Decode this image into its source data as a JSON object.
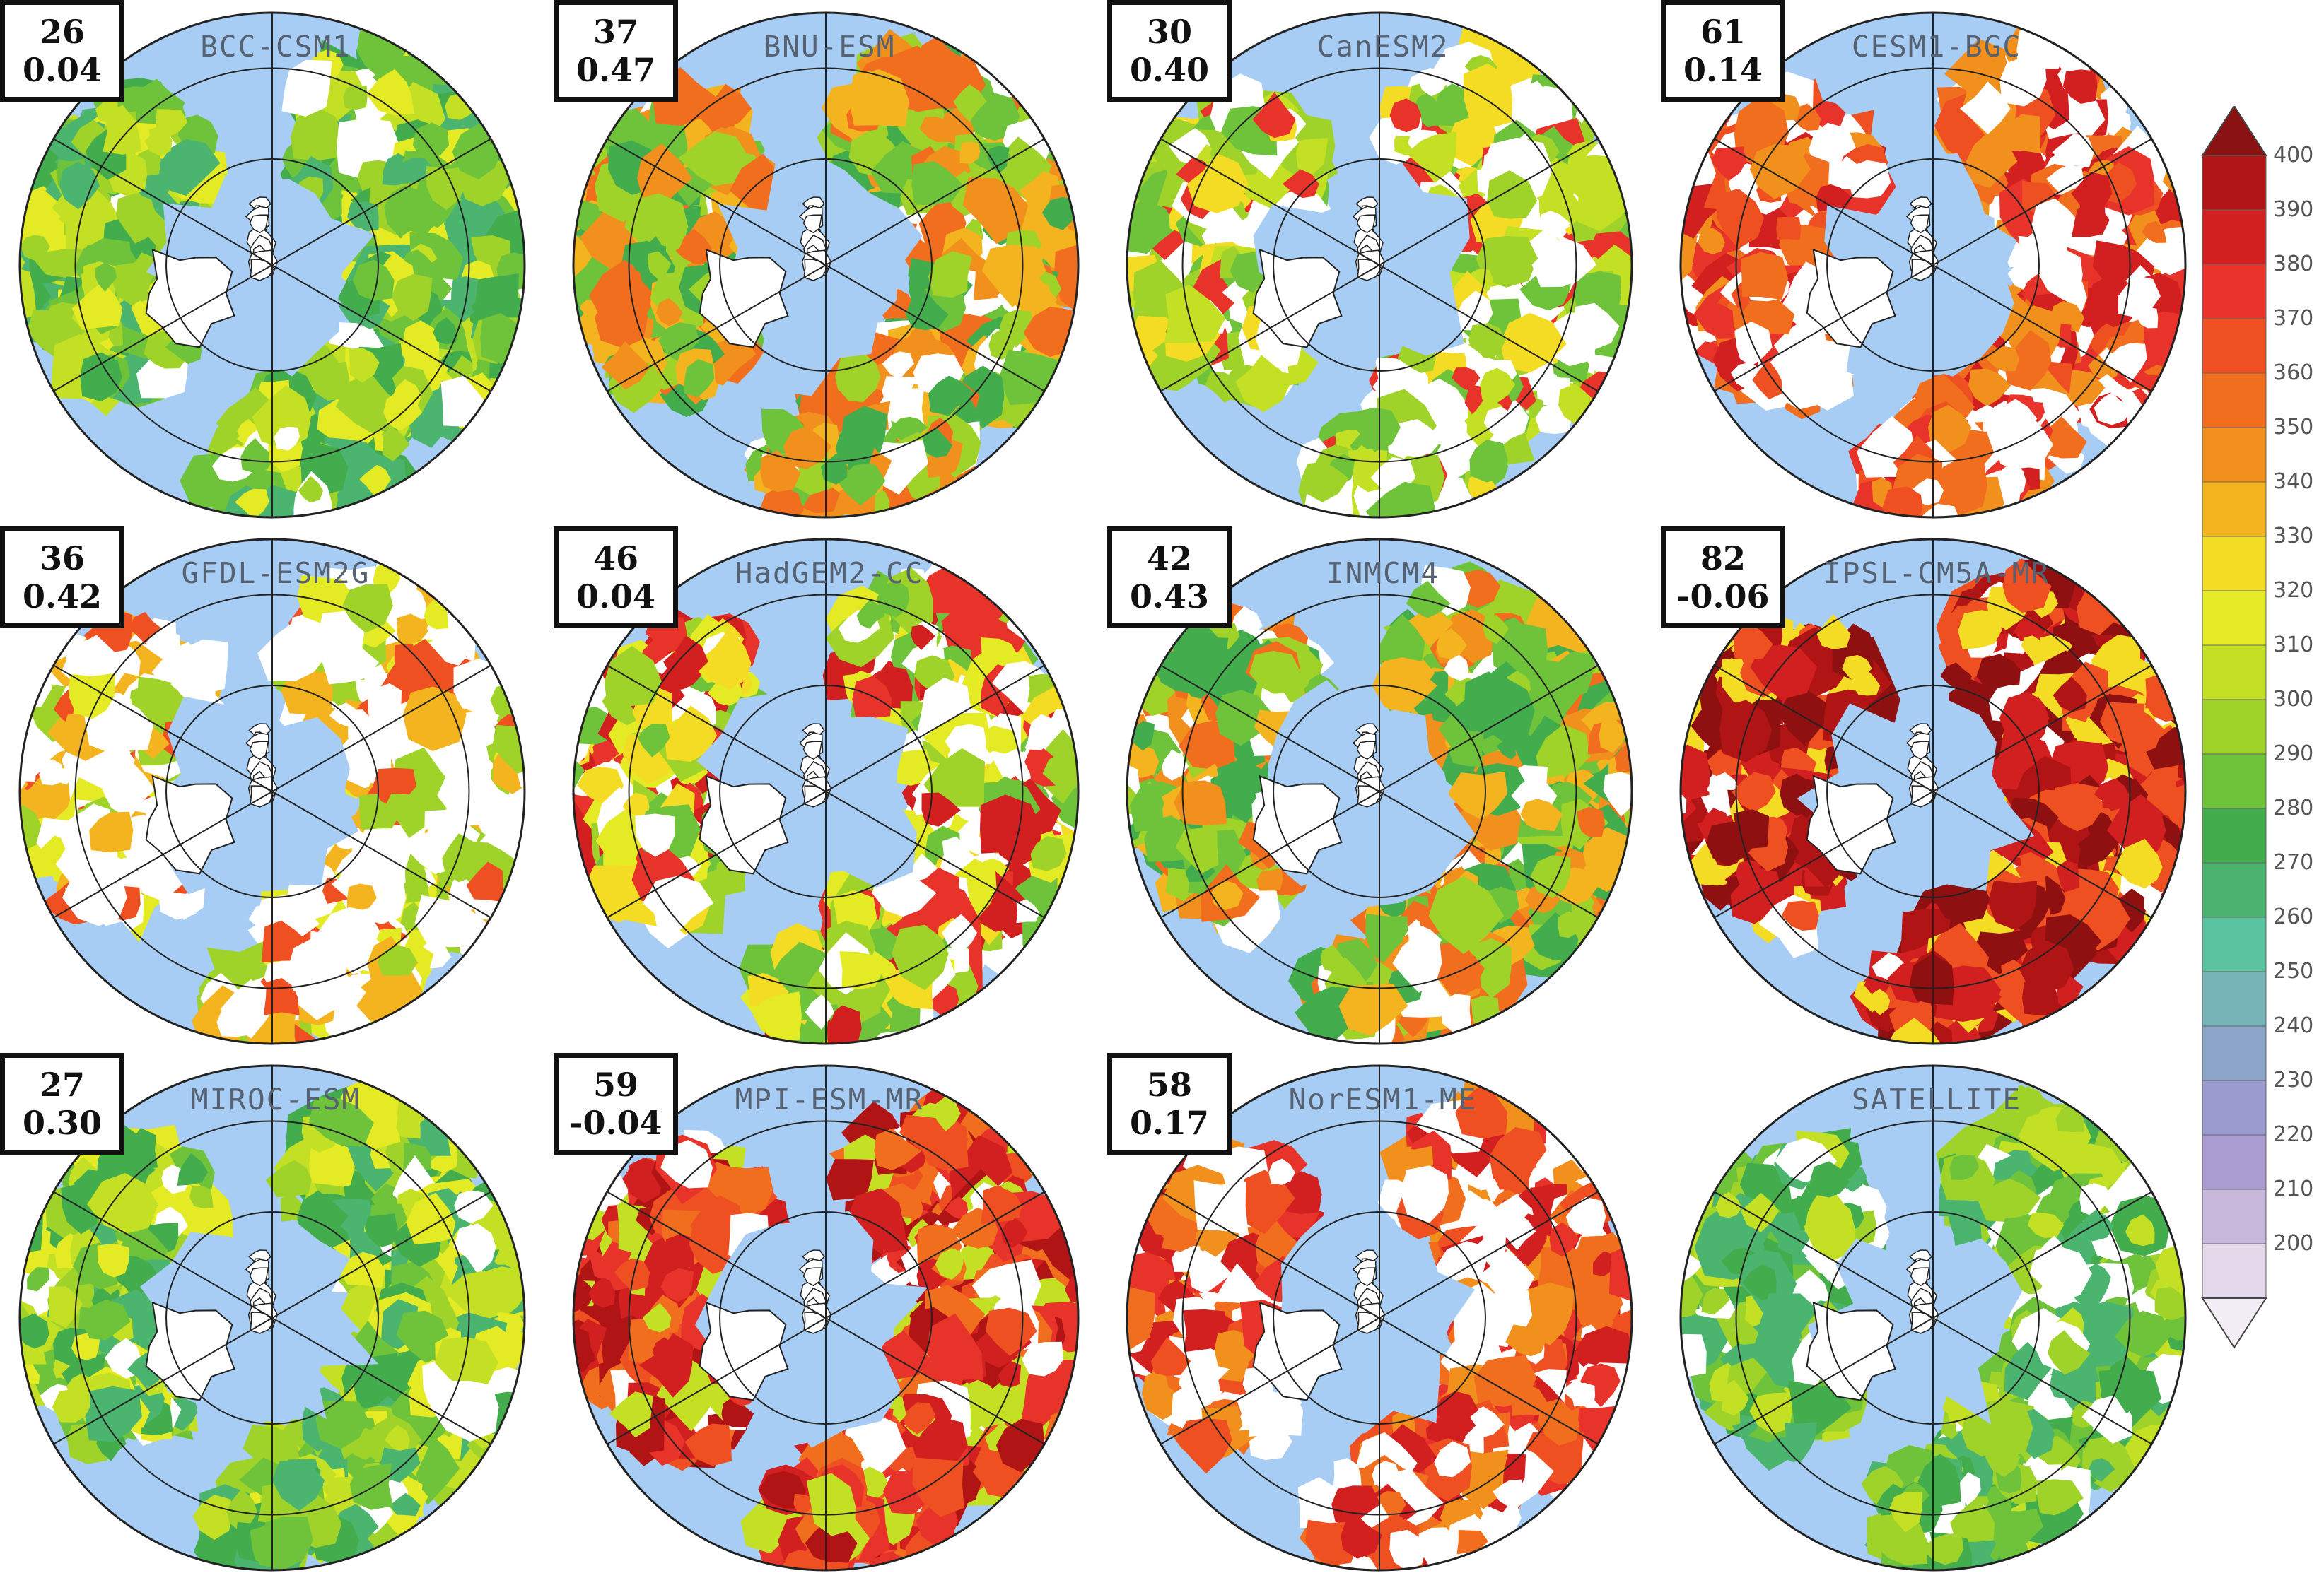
{
  "panels": [
    {
      "title": "BCC-CSM1",
      "value_top": "26",
      "value_bottom": "0.04",
      "palette": "green-mix"
    },
    {
      "title": "BNU-ESM",
      "value_top": "37",
      "value_bottom": "0.47",
      "palette": "orange-green"
    },
    {
      "title": "CanESM2",
      "value_top": "30",
      "value_bottom": "0.40",
      "palette": "green-sparse"
    },
    {
      "title": "CESM1-BGC",
      "value_top": "61",
      "value_bottom": "0.14",
      "palette": "orange-sparse"
    },
    {
      "title": "GFDL-ESM2G",
      "value_top": "36",
      "value_bottom": "0.42",
      "palette": "mostly-missing"
    },
    {
      "title": "HadGEM2-CC",
      "value_top": "46",
      "value_bottom": "0.04",
      "palette": "red-green"
    },
    {
      "title": "INMCM4",
      "value_top": "42",
      "value_bottom": "0.43",
      "palette": "orange-green"
    },
    {
      "title": "IPSL-CM5A-MR",
      "value_top": "82",
      "value_bottom": "-0.06",
      "palette": "dark-red"
    },
    {
      "title": "MIROC-ESM",
      "value_top": "27",
      "value_bottom": "0.30",
      "palette": "green-mix"
    },
    {
      "title": "MPI-ESM-MR",
      "value_top": "59",
      "value_bottom": "-0.04",
      "palette": "red-orange"
    },
    {
      "title": "NorESM1-ME",
      "value_top": "58",
      "value_bottom": "0.17",
      "palette": "orange-sparse"
    },
    {
      "title": "SATELLITE",
      "value_top": "",
      "value_bottom": "",
      "palette": "satellite"
    }
  ],
  "colorbar": {
    "labels": [
      "400",
      "390",
      "380",
      "370",
      "360",
      "350",
      "340",
      "330",
      "320",
      "310",
      "300",
      "290",
      "280",
      "270",
      "260",
      "250",
      "240",
      "230",
      "220",
      "210",
      "200"
    ],
    "colors": [
      "#b01414",
      "#d21f1f",
      "#e8332a",
      "#ef5022",
      "#f06e1e",
      "#f1901c",
      "#f4b41f",
      "#f4dc24",
      "#e4ea24",
      "#c3e024",
      "#9fd32a",
      "#6fc33a",
      "#43ad4d",
      "#4bb46f",
      "#5bc3a0",
      "#78b5b8",
      "#8da5c8",
      "#9a9ccf",
      "#aa9bd0",
      "#c6b7db",
      "#e4d9ea"
    ],
    "top_arrow_color": "#8a1212",
    "bottom_arrow_color": "#f3eef6"
  },
  "map_colors": {
    "ocean": "#a7cdf4",
    "land_missing": "#ffffff"
  }
}
